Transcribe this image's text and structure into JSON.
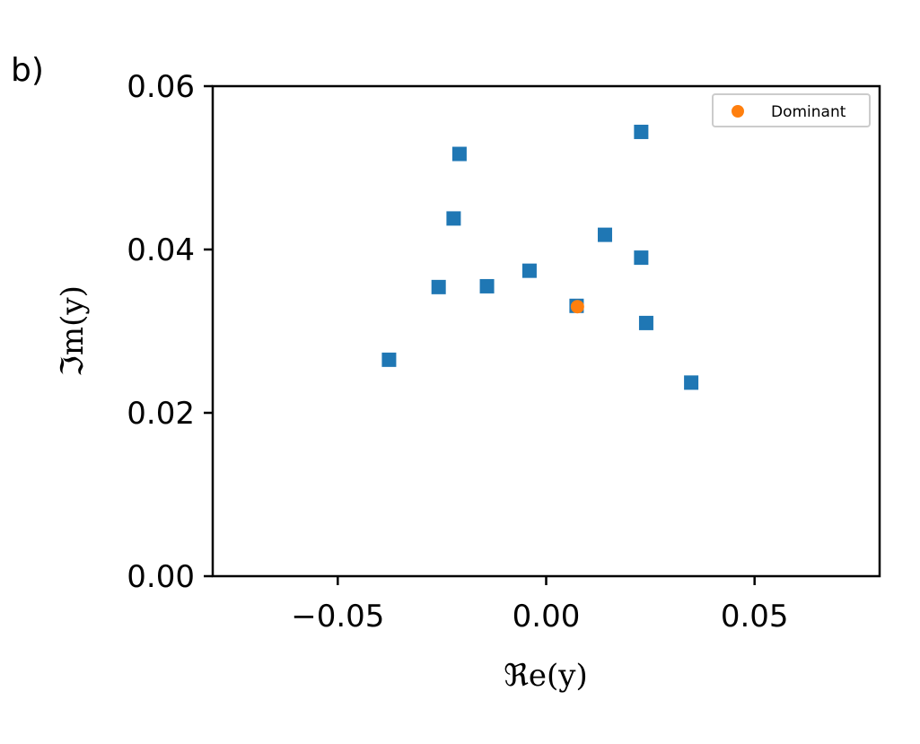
{
  "panel_label": "b)",
  "chart_data": {
    "type": "scatter",
    "xlabel": "ℜe(y)",
    "ylabel": "ℑm(y)",
    "xlim": [
      -0.08,
      0.08
    ],
    "ylim": [
      0.0,
      0.06
    ],
    "x_ticks": [
      -0.05,
      0.0,
      0.05
    ],
    "x_tick_labels": [
      "−0.05",
      "0.00",
      "0.05"
    ],
    "y_ticks": [
      0.0,
      0.02,
      0.04,
      0.06
    ],
    "y_tick_labels": [
      "0.00",
      "0.02",
      "0.04",
      "0.06"
    ],
    "grid": false,
    "legend_position": "top-right",
    "series": [
      {
        "marker": "square",
        "color": "#1f77b4",
        "points": [
          {
            "x": -0.0377,
            "y": 0.0265
          },
          {
            "x": -0.0258,
            "y": 0.0354
          },
          {
            "x": -0.0222,
            "y": 0.0438
          },
          {
            "x": -0.0208,
            "y": 0.0517
          },
          {
            "x": -0.0142,
            "y": 0.0355
          },
          {
            "x": -0.004,
            "y": 0.0374
          },
          {
            "x": 0.0073,
            "y": 0.0331
          },
          {
            "x": 0.0141,
            "y": 0.0418
          },
          {
            "x": 0.0228,
            "y": 0.0544
          },
          {
            "x": 0.0228,
            "y": 0.039
          },
          {
            "x": 0.024,
            "y": 0.031
          },
          {
            "x": 0.0348,
            "y": 0.0237
          }
        ]
      },
      {
        "name": "Dominant",
        "marker": "circle",
        "color": "#ff7f0e",
        "points": [
          {
            "x": 0.0075,
            "y": 0.033
          }
        ]
      }
    ]
  }
}
